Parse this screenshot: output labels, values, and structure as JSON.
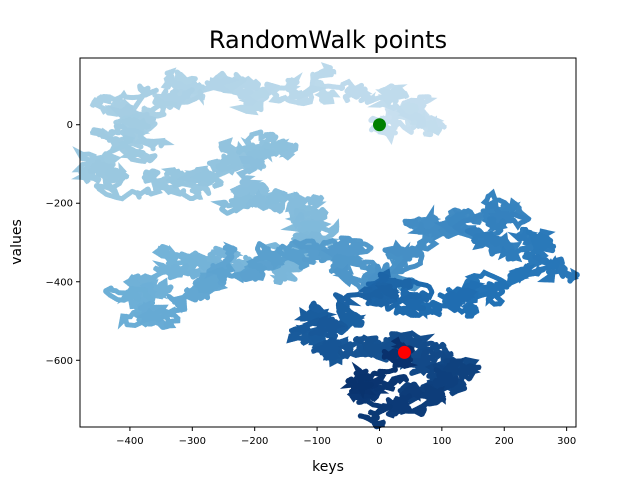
{
  "chart_data": {
    "type": "scatter",
    "title": "RandomWalk points",
    "xlabel": "keys",
    "ylabel": "values",
    "xlim": [
      -480,
      315
    ],
    "ylim": [
      -770,
      170
    ],
    "xticks": [
      -400,
      -300,
      -200,
      -100,
      0,
      100,
      200,
      300
    ],
    "yticks": [
      -600,
      -400,
      -200,
      0
    ],
    "colormap": "Blues",
    "grid": false,
    "num_points": 50000,
    "start_point": {
      "x": 0,
      "y": 0,
      "color": "#008000"
    },
    "end_point": {
      "x": 40,
      "y": -580,
      "color": "#ff0000"
    },
    "path_waypoints": [
      {
        "x": 0,
        "y": 0
      },
      {
        "x": 60,
        "y": 35
      },
      {
        "x": -20,
        "y": 60
      },
      {
        "x": -160,
        "y": 95
      },
      {
        "x": -260,
        "y": 110
      },
      {
        "x": -340,
        "y": 60
      },
      {
        "x": -400,
        "y": 40
      },
      {
        "x": -380,
        "y": -40
      },
      {
        "x": -440,
        "y": -120
      },
      {
        "x": -320,
        "y": -150
      },
      {
        "x": -240,
        "y": -80
      },
      {
        "x": -160,
        "y": -50
      },
      {
        "x": -220,
        "y": -200
      },
      {
        "x": -120,
        "y": -210
      },
      {
        "x": -100,
        "y": -290
      },
      {
        "x": -150,
        "y": -360
      },
      {
        "x": -260,
        "y": -350
      },
      {
        "x": -360,
        "y": -380
      },
      {
        "x": -410,
        "y": -440
      },
      {
        "x": -350,
        "y": -490
      },
      {
        "x": -250,
        "y": -390
      },
      {
        "x": -140,
        "y": -330
      },
      {
        "x": -50,
        "y": -300
      },
      {
        "x": -20,
        "y": -420
      },
      {
        "x": 60,
        "y": -300
      },
      {
        "x": 120,
        "y": -250
      },
      {
        "x": 180,
        "y": -220
      },
      {
        "x": 200,
        "y": -300
      },
      {
        "x": 270,
        "y": -340
      },
      {
        "x": 180,
        "y": -420
      },
      {
        "x": 80,
        "y": -460
      },
      {
        "x": 20,
        "y": -400
      },
      {
        "x": -50,
        "y": -470
      },
      {
        "x": -130,
        "y": -520
      },
      {
        "x": -60,
        "y": -580
      },
      {
        "x": 40,
        "y": -560
      },
      {
        "x": 100,
        "y": -600
      },
      {
        "x": 130,
        "y": -640
      },
      {
        "x": 60,
        "y": -720
      },
      {
        "x": -20,
        "y": -680
      },
      {
        "x": 40,
        "y": -580
      }
    ]
  }
}
